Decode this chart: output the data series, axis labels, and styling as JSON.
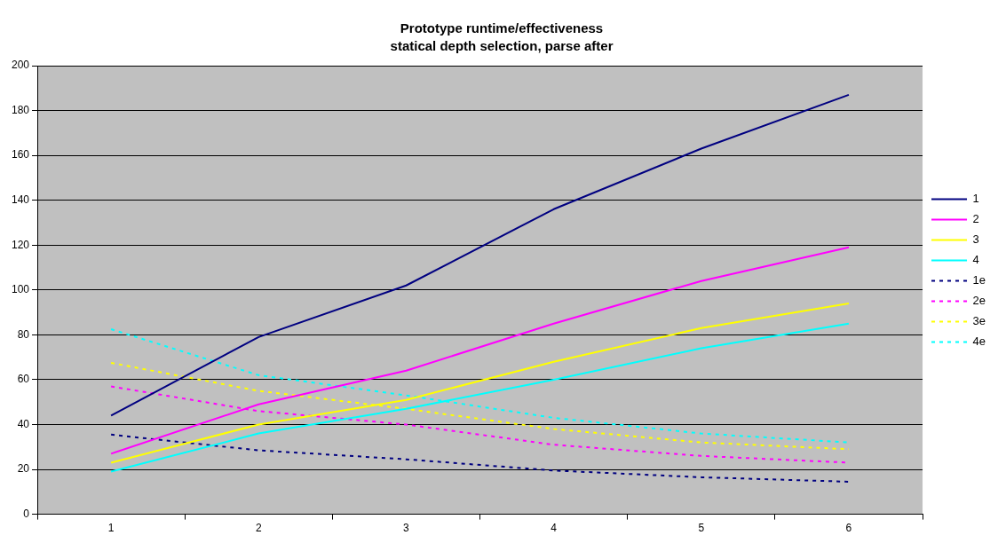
{
  "chart_data": {
    "type": "line",
    "title": "Prototype runtime/effectiveness",
    "subtitle": "statical depth selection, parse after",
    "categories": [
      "1",
      "2",
      "3",
      "4",
      "5",
      "6"
    ],
    "ylim": [
      0,
      200
    ],
    "yticks": [
      0,
      20,
      40,
      60,
      80,
      100,
      120,
      140,
      160,
      180,
      200
    ],
    "grid": "y",
    "legend": "right",
    "marker": "none",
    "series": [
      {
        "name": "1",
        "color": "#000080",
        "line_style": "solid",
        "values": [
          44,
          79,
          102,
          136,
          163,
          187
        ]
      },
      {
        "name": "2",
        "color": "#ff00ff",
        "line_style": "solid",
        "values": [
          27,
          49,
          64,
          85,
          104,
          119
        ]
      },
      {
        "name": "3",
        "color": "#ffff00",
        "line_style": "solid",
        "values": [
          23,
          40,
          51,
          68,
          83,
          94
        ]
      },
      {
        "name": "4",
        "color": "#00ffff",
        "line_style": "solid",
        "values": [
          19,
          36,
          47,
          60,
          74,
          85
        ]
      },
      {
        "name": "1e",
        "color": "#000080",
        "line_style": "dotted",
        "values": [
          35.5,
          28.5,
          24.5,
          19.5,
          16.5,
          14.5
        ]
      },
      {
        "name": "2e",
        "color": "#ff00ff",
        "line_style": "dotted",
        "values": [
          57,
          46,
          40,
          31,
          26,
          23
        ]
      },
      {
        "name": "3e",
        "color": "#ffff00",
        "line_style": "dotted",
        "values": [
          67.5,
          55,
          47,
          38,
          32,
          29
        ]
      },
      {
        "name": "4e",
        "color": "#00ffff",
        "line_style": "dotted",
        "values": [
          82.5,
          62,
          53,
          43,
          36,
          32
        ]
      }
    ]
  }
}
